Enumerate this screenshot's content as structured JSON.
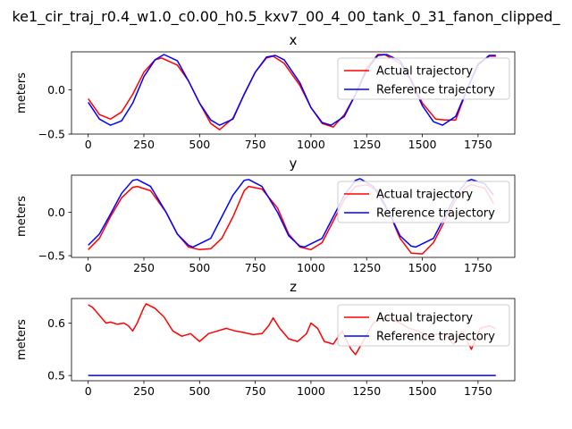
{
  "figure": {
    "suptitle": "ke1_cir_traj_r0.4_w1.0_c0.00_h0.5_kxv7_00_4_00_tank_0_31_fanon_clipped_"
  },
  "chart_data": [
    {
      "type": "line",
      "title": "x",
      "ylabel": "meters",
      "xlim": [
        -75,
        1915
      ],
      "ylim": [
        -0.5,
        0.43
      ],
      "xticks": [
        0,
        250,
        500,
        750,
        1000,
        1250,
        1500,
        1750
      ],
      "yticks": [
        -0.5,
        0.0
      ],
      "ytick_labels": [
        "−0.5",
        "0.0"
      ],
      "legend": "top-right",
      "series": [
        {
          "name": "Actual trajectory",
          "color": "#ff0000",
          "x": [
            0,
            50,
            100,
            150,
            200,
            250,
            300,
            330,
            400,
            450,
            500,
            550,
            590,
            650,
            700,
            750,
            800,
            830,
            880,
            950,
            1000,
            1050,
            1100,
            1150,
            1200,
            1250,
            1300,
            1330,
            1400,
            1450,
            1500,
            1560,
            1600,
            1650,
            1700,
            1750,
            1800,
            1830
          ],
          "y": [
            -0.1,
            -0.28,
            -0.33,
            -0.25,
            -0.05,
            0.2,
            0.34,
            0.36,
            0.28,
            0.1,
            -0.15,
            -0.38,
            -0.45,
            -0.32,
            -0.05,
            0.2,
            0.36,
            0.38,
            0.3,
            0.05,
            -0.2,
            -0.38,
            -0.42,
            -0.28,
            -0.05,
            0.25,
            0.4,
            0.4,
            0.3,
            0.12,
            -0.15,
            -0.33,
            -0.34,
            -0.34,
            0.0,
            0.3,
            0.38,
            0.38
          ]
        },
        {
          "name": "Reference trajectory",
          "color": "#0000ff",
          "x": [
            0,
            50,
            100,
            150,
            200,
            250,
            300,
            340,
            400,
            450,
            500,
            550,
            590,
            650,
            700,
            750,
            800,
            840,
            880,
            950,
            1000,
            1050,
            1090,
            1150,
            1200,
            1250,
            1300,
            1340,
            1400,
            1450,
            1500,
            1550,
            1590,
            1650,
            1700,
            1750,
            1800,
            1830
          ],
          "y": [
            -0.14,
            -0.33,
            -0.4,
            -0.35,
            -0.15,
            0.15,
            0.34,
            0.4,
            0.33,
            0.1,
            -0.15,
            -0.34,
            -0.4,
            -0.33,
            -0.05,
            0.2,
            0.37,
            0.39,
            0.34,
            0.08,
            -0.2,
            -0.37,
            -0.4,
            -0.3,
            -0.05,
            0.22,
            0.39,
            0.4,
            0.33,
            0.1,
            -0.18,
            -0.36,
            -0.4,
            -0.3,
            0.0,
            0.28,
            0.39,
            0.39
          ]
        }
      ]
    },
    {
      "type": "line",
      "title": "y",
      "ylabel": "meters",
      "xlim": [
        -75,
        1915
      ],
      "ylim": [
        -0.52,
        0.43
      ],
      "xticks": [
        0,
        250,
        500,
        750,
        1000,
        1250,
        1500,
        1750
      ],
      "yticks": [
        -0.5,
        0.0
      ],
      "ytick_labels": [
        "−0.5",
        "0.0"
      ],
      "legend": "top-right",
      "series": [
        {
          "name": "Actual trajectory",
          "color": "#ff0000",
          "x": [
            0,
            50,
            100,
            150,
            200,
            220,
            280,
            350,
            400,
            450,
            500,
            550,
            600,
            650,
            700,
            720,
            780,
            850,
            900,
            950,
            1000,
            1050,
            1100,
            1150,
            1200,
            1250,
            1300,
            1350,
            1400,
            1450,
            1500,
            1550,
            1600,
            1650,
            1700,
            1720,
            1780,
            1820
          ],
          "y": [
            -0.43,
            -0.3,
            -0.05,
            0.17,
            0.29,
            0.3,
            0.25,
            0.0,
            -0.25,
            -0.4,
            -0.43,
            -0.42,
            -0.3,
            -0.05,
            0.25,
            0.3,
            0.27,
            0.05,
            -0.25,
            -0.4,
            -0.43,
            -0.35,
            -0.1,
            0.15,
            0.3,
            0.32,
            0.25,
            0.0,
            -0.3,
            -0.47,
            -0.48,
            -0.35,
            -0.1,
            0.15,
            0.3,
            0.32,
            0.28,
            0.1
          ]
        },
        {
          "name": "Reference trajectory",
          "color": "#0000ff",
          "x": [
            0,
            50,
            100,
            150,
            200,
            220,
            280,
            350,
            400,
            450,
            470,
            550,
            600,
            650,
            700,
            720,
            780,
            850,
            900,
            950,
            970,
            1050,
            1100,
            1150,
            1200,
            1220,
            1280,
            1350,
            1400,
            1450,
            1470,
            1550,
            1600,
            1650,
            1700,
            1720,
            1780,
            1820
          ],
          "y": [
            -0.38,
            -0.25,
            -0.02,
            0.22,
            0.37,
            0.38,
            0.3,
            0.0,
            -0.25,
            -0.38,
            -0.4,
            -0.3,
            -0.05,
            0.2,
            0.37,
            0.38,
            0.3,
            0.0,
            -0.27,
            -0.39,
            -0.4,
            -0.3,
            -0.05,
            0.2,
            0.37,
            0.39,
            0.3,
            0.0,
            -0.27,
            -0.39,
            -0.4,
            -0.3,
            -0.05,
            0.2,
            0.36,
            0.38,
            0.33,
            0.2
          ]
        }
      ]
    },
    {
      "type": "line",
      "title": "z",
      "ylabel": "meters",
      "xlim": [
        -75,
        1915
      ],
      "ylim": [
        0.49,
        0.647
      ],
      "xticks": [
        0,
        250,
        500,
        750,
        1000,
        1250,
        1500,
        1750
      ],
      "yticks": [
        0.5,
        0.6
      ],
      "ytick_labels": [
        "0.5",
        "0.6"
      ],
      "legend": "top-right",
      "series": [
        {
          "name": "Actual trajectory",
          "color": "#ff0000",
          "x": [
            0,
            20,
            50,
            80,
            100,
            130,
            160,
            180,
            200,
            220,
            250,
            260,
            300,
            340,
            380,
            420,
            460,
            500,
            540,
            580,
            620,
            660,
            700,
            740,
            780,
            810,
            830,
            860,
            900,
            940,
            980,
            1000,
            1030,
            1060,
            1100,
            1140,
            1180,
            1200,
            1240,
            1280,
            1320,
            1360,
            1400,
            1440,
            1480,
            1520,
            1560,
            1600,
            1640,
            1680,
            1720,
            1760,
            1800,
            1830
          ],
          "y": [
            0.635,
            0.63,
            0.615,
            0.6,
            0.602,
            0.598,
            0.6,
            0.595,
            0.585,
            0.6,
            0.63,
            0.637,
            0.628,
            0.612,
            0.585,
            0.575,
            0.58,
            0.565,
            0.58,
            0.585,
            0.59,
            0.585,
            0.582,
            0.578,
            0.58,
            0.595,
            0.61,
            0.59,
            0.57,
            0.565,
            0.58,
            0.6,
            0.59,
            0.565,
            0.56,
            0.585,
            0.55,
            0.54,
            0.57,
            0.6,
            0.61,
            0.608,
            0.6,
            0.59,
            0.585,
            0.575,
            0.578,
            0.58,
            0.56,
            0.585,
            0.55,
            0.59,
            0.595,
            0.59
          ]
        },
        {
          "name": "Reference trajectory",
          "color": "#0000ff",
          "x": [
            0,
            1830
          ],
          "y": [
            0.5,
            0.5
          ]
        }
      ]
    }
  ]
}
